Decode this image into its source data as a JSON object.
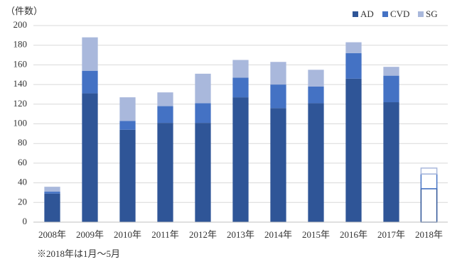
{
  "chart_data": {
    "type": "stacked_bar",
    "y_label": "（件数）",
    "note": "※2018年は1月～5月",
    "categories": [
      "2008年",
      "2009年",
      "2010年",
      "2011年",
      "2012年",
      "2013年",
      "2014年",
      "2015年",
      "2016年",
      "2017年",
      "2018年"
    ],
    "series": [
      {
        "name": "AD",
        "color": "#2f5597",
        "values": [
          29,
          131,
          94,
          101,
          101,
          127,
          116,
          121,
          146,
          122,
          34
        ]
      },
      {
        "name": "CVD",
        "color": "#4472c4",
        "values": [
          2,
          23,
          9,
          17,
          20,
          20,
          24,
          17,
          26,
          27,
          15
        ]
      },
      {
        "name": "SG",
        "color": "#a9b8dc",
        "values": [
          5,
          34,
          24,
          14,
          30,
          18,
          23,
          17,
          11,
          9,
          6
        ]
      }
    ],
    "outlined_categories": [
      10
    ],
    "ylim": [
      0,
      200
    ],
    "yticks": [
      0,
      20,
      40,
      60,
      80,
      100,
      120,
      140,
      160,
      180,
      200
    ],
    "grid": true,
    "legend": "top-right"
  }
}
